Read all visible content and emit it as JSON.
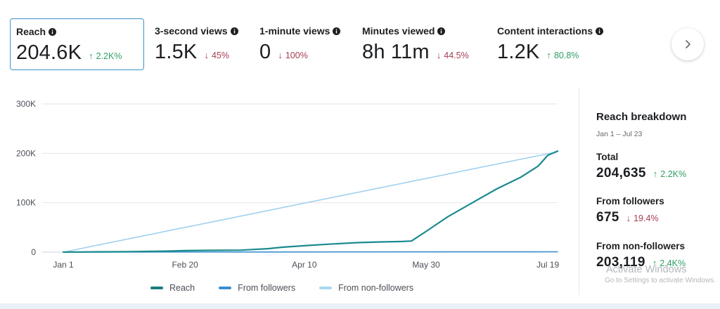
{
  "metrics": [
    {
      "label": "Reach",
      "value": "204.6K",
      "change": "2.2K%",
      "direction": "up",
      "selected": true
    },
    {
      "label": "3-second views",
      "value": "1.5K",
      "change": "45%",
      "direction": "down",
      "selected": false
    },
    {
      "label": "1-minute views",
      "value": "0",
      "change": "100%",
      "direction": "down",
      "selected": false
    },
    {
      "label": "Minutes viewed",
      "value": "8h 11m",
      "change": "44.5%",
      "direction": "down",
      "selected": false
    },
    {
      "label": "Content interactions",
      "value": "1.2K",
      "change": "80.8%",
      "direction": "up",
      "selected": false
    }
  ],
  "chart_data": {
    "type": "line",
    "y_ticks": [
      "300K",
      "200K",
      "100K",
      "0"
    ],
    "x_ticks": [
      "Jan 1",
      "Feb 20",
      "Apr 10",
      "May 30",
      "Jul 19"
    ],
    "ylim": [
      0,
      300000
    ],
    "x_range": [
      "Jan 1",
      "Jul 23"
    ],
    "grid": true,
    "legend_placement": "bottom-center",
    "series": [
      {
        "name": "Reach",
        "color": "#1a8a8e",
        "x": [
          "Jan 1",
          "Jan 15",
          "Jan 29",
          "Feb 12",
          "Feb 20",
          "Mar 1",
          "Mar 15",
          "Mar 26",
          "Apr 1",
          "Apr 10",
          "Apr 20",
          "May 1",
          "May 10",
          "May 20",
          "May 24",
          "May 30",
          "Jun 8",
          "Jun 18",
          "Jun 28",
          "Jul 8",
          "Jul 15",
          "Jul 19",
          "Jul 23"
        ],
        "y": [
          0,
          500,
          1000,
          2000,
          3000,
          3500,
          4000,
          7000,
          10000,
          13000,
          16000,
          19000,
          20500,
          21500,
          22500,
          42000,
          72000,
          100000,
          128000,
          152000,
          174000,
          196000,
          204635
        ]
      },
      {
        "name": "From followers",
        "color": "#3a8fcf",
        "x": [
          "Jan 1",
          "Jul 23"
        ],
        "y": [
          0,
          675
        ]
      },
      {
        "name": "From non-followers",
        "color": "#9fd1ee",
        "x": [
          "Jan 1",
          "Jul 23"
        ],
        "y": [
          0,
          203119
        ]
      }
    ]
  },
  "breakdown": {
    "title": "Reach breakdown",
    "range": "Jan 1 – Jul 23",
    "items": [
      {
        "label": "Total",
        "value": "204,635",
        "change": "2.2K%",
        "direction": "up"
      },
      {
        "label": "From followers",
        "value": "675",
        "change": "19.4%",
        "direction": "down"
      },
      {
        "label": "From non-followers",
        "value": "203,119",
        "change": "2.4K%",
        "direction": "up"
      }
    ]
  },
  "watermark": {
    "line1": "Activate Windows",
    "line2": "Go to Settings to activate Windows."
  },
  "icons": {
    "info": "info-icon",
    "next": "chevron-right-icon",
    "up": "arrow-up-icon",
    "down": "arrow-down-icon"
  }
}
